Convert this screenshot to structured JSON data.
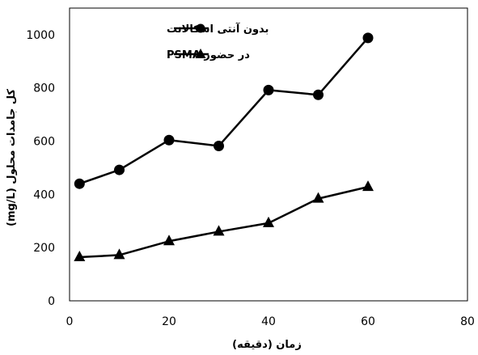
{
  "chart_data": {
    "type": "line",
    "xlabel": "زمان (دقیقه)",
    "ylabel": "کل جامدات محلول (mg/L)",
    "xlim": [
      0,
      80
    ],
    "ylim": [
      0,
      1100
    ],
    "x_ticks": [
      0,
      20,
      40,
      60,
      80
    ],
    "y_ticks": [
      0,
      200,
      400,
      600,
      800,
      1000
    ],
    "grid": false,
    "legend_position": "top-left",
    "x": [
      2,
      10,
      20,
      30,
      40,
      50,
      60
    ],
    "series": [
      {
        "name": "بدون آنتی اسکالانت",
        "marker": "circle",
        "color": "#000000",
        "values": [
          440,
          492,
          604,
          582,
          792,
          774,
          988
        ]
      },
      {
        "name": "در حضور PSMA",
        "marker": "triangle",
        "color": "#000000",
        "values": [
          164,
          172,
          224,
          260,
          292,
          384,
          428
        ]
      }
    ]
  }
}
